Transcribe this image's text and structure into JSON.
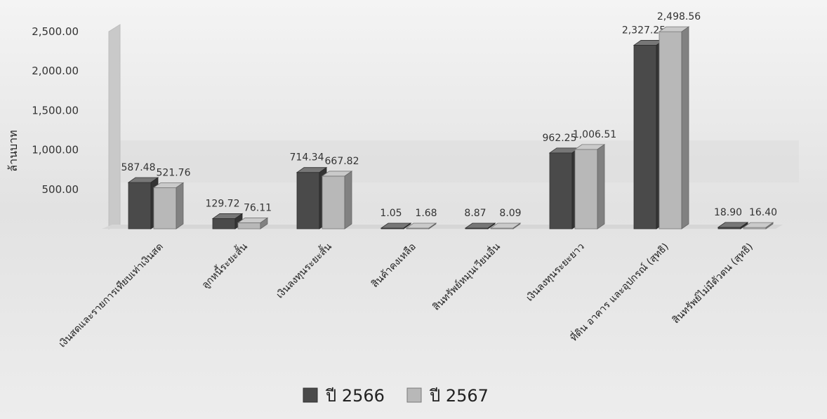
{
  "chart_data": {
    "type": "bar",
    "title": "",
    "xlabel": "",
    "ylabel": "ล้านบาท",
    "ylim": [
      0,
      2500
    ],
    "yticks": [
      "2,500.00",
      "2,000.00",
      "1,500.00",
      "1,000.00",
      "500.00"
    ],
    "ytick_values": [
      2500,
      2000,
      1500,
      1000,
      500
    ],
    "categories": [
      "เงินสดและรายการเทียบเท่าเงินสด",
      "ลูกหนี้ระยะสั้น",
      "เงินลงทุนระยะสั้น",
      "สินค้าคงเหลือ",
      "สินทรัพย์หมุนเวียนอื่น",
      "เงินลงทุนระยะยาว",
      "ที่ดิน อาคาร และอุปกรณ์ (สุทธิ)",
      "สินทรัพย์ไม่มีตัวตน (สุทธิ)"
    ],
    "series": [
      {
        "name": "ปี 2566",
        "values": [
          587.48,
          129.72,
          714.34,
          1.05,
          8.87,
          962.25,
          2327.25,
          18.9
        ],
        "labels": [
          "587.48",
          "129.72",
          "714.34",
          "1.05",
          "8.87",
          "962.25",
          "2,327.25",
          "18.90"
        ]
      },
      {
        "name": "ปี 2567",
        "values": [
          521.76,
          76.11,
          667.82,
          1.68,
          8.09,
          1006.51,
          2498.56,
          16.4
        ],
        "labels": [
          "521.76",
          "76.11",
          "667.82",
          "1.68",
          "8.09",
          "1,006.51",
          "2,498.56",
          "16.40"
        ]
      }
    ],
    "grid": false,
    "legend_position": "bottom",
    "colors": {
      "series1": "#4a4a4a",
      "series2": "#b8b8b8"
    }
  }
}
